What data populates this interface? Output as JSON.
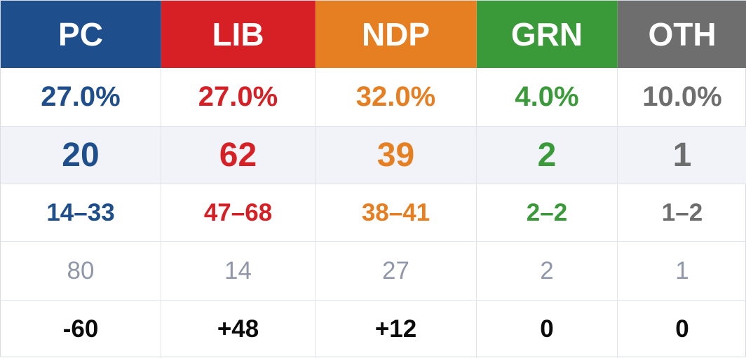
{
  "parties": [
    {
      "code": "PC",
      "color": "#1f4e8c",
      "vote_share": "27.0%",
      "seats": "20",
      "range": "14–33",
      "previous": "80",
      "change": "-60"
    },
    {
      "code": "LIB",
      "color": "#d71f26",
      "vote_share": "27.0%",
      "seats": "62",
      "range": "47–68",
      "previous": "14",
      "change": "+48"
    },
    {
      "code": "NDP",
      "color": "#e67e22",
      "vote_share": "32.0%",
      "seats": "39",
      "range": "38–41",
      "previous": "27",
      "change": "+12"
    },
    {
      "code": "GRN",
      "color": "#3a9a3a",
      "vote_share": "4.0%",
      "seats": "2",
      "range": "2–2",
      "previous": "2",
      "change": "0"
    },
    {
      "code": "OTH",
      "color": "#6e6e6e",
      "vote_share": "10.0%",
      "seats": "1",
      "range": "1–2",
      "previous": "1",
      "change": "0"
    }
  ]
}
